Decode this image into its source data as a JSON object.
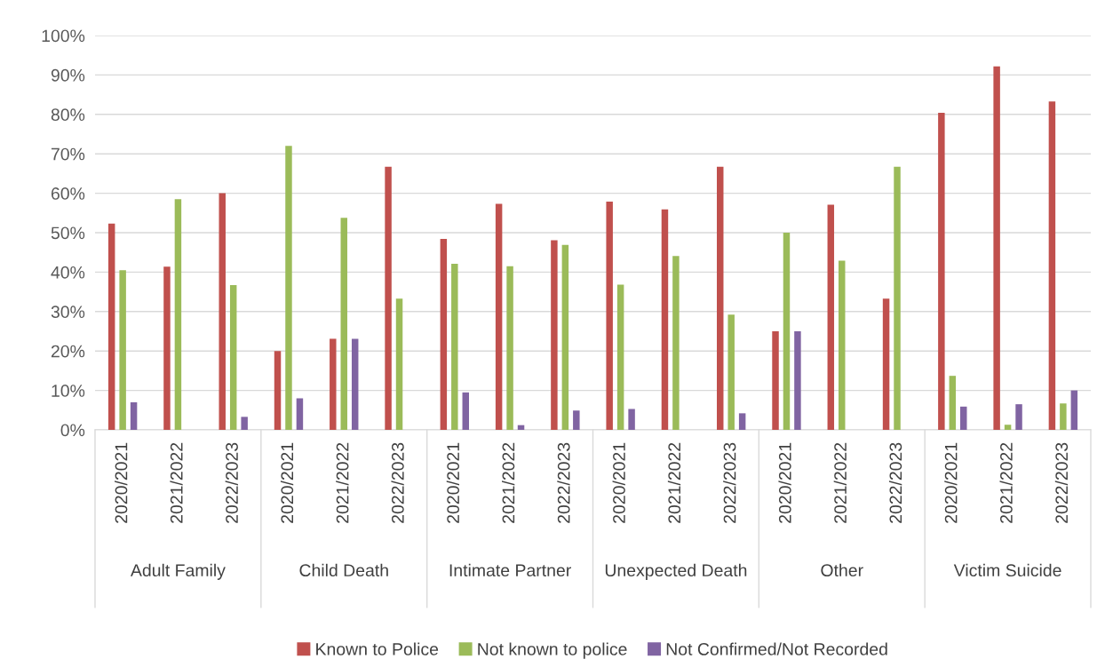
{
  "chart_data": {
    "type": "bar",
    "categories": [
      "2020/2021",
      "2021/2022",
      "2022/2023",
      "2020/2021",
      "2021/2022",
      "2022/2023",
      "2020/2021",
      "2021/2022",
      "2022/2023",
      "2020/2021",
      "2021/2022",
      "2022/2023",
      "2020/2021",
      "2021/2022",
      "2022/2023",
      "2020/2021",
      "2021/2022",
      "2022/2023"
    ],
    "annotations": [
      "Adult Family",
      "Child Death",
      "Intimate Partner",
      "Unexpected Death",
      "Other",
      "Victim Suicide"
    ],
    "series": [
      {
        "name": "Known to Police",
        "color": "#c0504d",
        "values": [
          52.3,
          41.4,
          60,
          20,
          23.1,
          66.7,
          48.4,
          57.3,
          48.1,
          57.9,
          55.9,
          66.7,
          25,
          57.1,
          33.3,
          80.4,
          92.2,
          83.3
        ]
      },
      {
        "name": "Not known to police",
        "color": "#9bbb59",
        "values": [
          40.5,
          58.5,
          36.7,
          72,
          53.8,
          33.3,
          42.1,
          41.5,
          46.9,
          36.8,
          44.1,
          29.2,
          50,
          42.9,
          66.7,
          13.7,
          1.3,
          6.7
        ]
      },
      {
        "name": "Not Confirmed/Not Recorded",
        "color": "#8064a2",
        "values": [
          7,
          0,
          3.3,
          8,
          23.1,
          0,
          9.5,
          1.2,
          4.9,
          5.3,
          0,
          4.2,
          25,
          0,
          0,
          5.9,
          6.5,
          10
        ]
      }
    ],
    "ylim": [
      0,
      100
    ],
    "yticks": [
      {
        "value": 0,
        "label": "0%"
      },
      {
        "value": 10,
        "label": "10%"
      },
      {
        "value": 20,
        "label": "20%"
      },
      {
        "value": 30,
        "label": "30%"
      },
      {
        "value": 40,
        "label": "40%"
      },
      {
        "value": 50,
        "label": "50%"
      },
      {
        "value": 60,
        "label": "60%"
      },
      {
        "value": 70,
        "label": "70%"
      },
      {
        "value": 80,
        "label": "80%"
      },
      {
        "value": 90,
        "label": "90%"
      },
      {
        "value": 100,
        "label": "100%"
      }
    ],
    "grid": "y",
    "legend": "bottom"
  }
}
